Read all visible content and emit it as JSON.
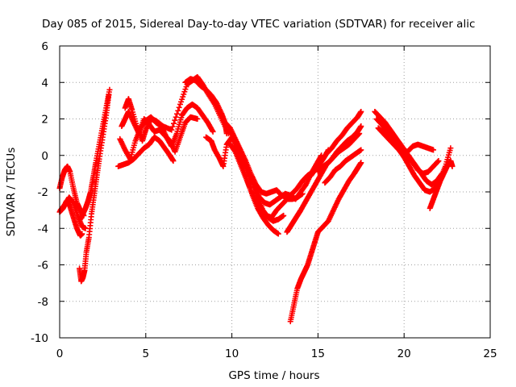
{
  "chart_data": {
    "type": "scatter",
    "title": "Day 085 of 2015, Sidereal Day-to-day VTEC variation (SDTVAR) for receiver alic",
    "xlabel": "GPS time / hours",
    "ylabel": "SDTVAR / TECUs",
    "xlim": [
      0,
      25
    ],
    "ylim": [
      -10,
      6
    ],
    "xticks": [
      0,
      5,
      10,
      15,
      20,
      25
    ],
    "yticks": [
      -10,
      -8,
      -6,
      -4,
      -2,
      0,
      2,
      4,
      6
    ],
    "grid": true,
    "marker": "plus",
    "color": "#ff0000",
    "series": [
      {
        "x": [
          0.0,
          0.15,
          0.3,
          0.45,
          0.6,
          0.8,
          1.0,
          1.2,
          1.4
        ],
        "y": [
          -1.8,
          -1.2,
          -0.8,
          -0.6,
          -0.9,
          -1.8,
          -2.6,
          -3.0,
          -3.3
        ]
      },
      {
        "x": [
          0.0,
          0.2,
          0.4,
          0.6,
          0.8,
          1.0,
          1.2,
          1.3
        ],
        "y": [
          -3.1,
          -2.9,
          -2.5,
          -2.8,
          -3.4,
          -4.0,
          -4.4,
          -4.3
        ]
      },
      {
        "x": [
          0.05,
          0.3,
          0.55,
          0.8,
          1.05,
          1.3,
          1.5
        ],
        "y": [
          -3.0,
          -2.7,
          -2.3,
          -2.6,
          -3.3,
          -3.9,
          -4.0
        ]
      },
      {
        "x": [
          1.2,
          1.35,
          1.5,
          1.65,
          1.8,
          1.95,
          2.1,
          2.3,
          2.5,
          2.7,
          2.9
        ],
        "y": [
          -3.5,
          -3.2,
          -2.9,
          -2.5,
          -2.0,
          -1.2,
          -0.4,
          0.6,
          1.6,
          2.6,
          3.6
        ]
      },
      {
        "x": [
          1.15,
          1.25,
          1.35,
          1.45,
          1.55,
          1.7,
          1.85,
          2.0,
          2.15,
          2.3,
          2.5,
          2.7,
          2.85
        ],
        "y": [
          -6.2,
          -6.9,
          -6.7,
          -6.3,
          -5.3,
          -4.5,
          -3.2,
          -2.2,
          -1.2,
          -0.2,
          1.0,
          2.2,
          3.3
        ]
      },
      {
        "x": [
          3.5,
          3.8,
          4.1,
          4.4,
          4.7,
          5.0,
          5.3,
          5.6,
          5.9,
          6.2,
          6.5,
          6.8,
          7.1,
          7.4,
          7.7,
          8.0,
          8.3,
          8.6,
          8.9
        ],
        "y": [
          0.9,
          0.3,
          -0.2,
          0.8,
          1.5,
          1.9,
          2.1,
          1.8,
          1.6,
          1.0,
          0.5,
          1.2,
          2.2,
          2.6,
          2.8,
          2.6,
          2.2,
          1.8,
          1.3
        ]
      },
      {
        "x": [
          3.6,
          3.8,
          4.0,
          4.3,
          4.6,
          4.9,
          5.2,
          5.5,
          5.8,
          6.1,
          6.4,
          6.7,
          7.0,
          7.3,
          7.6,
          8.0
        ],
        "y": [
          1.6,
          2.0,
          2.4,
          1.8,
          1.2,
          2.0,
          1.7,
          1.3,
          1.4,
          1.1,
          0.8,
          0.2,
          1.0,
          1.8,
          2.1,
          2.0
        ]
      },
      {
        "x": [
          3.4,
          3.7,
          4.0,
          4.3,
          4.6,
          4.9,
          5.2,
          5.5,
          5.8,
          6.1,
          6.4,
          6.6
        ],
        "y": [
          -0.6,
          -0.5,
          -0.4,
          -0.2,
          0.1,
          0.4,
          0.6,
          1.0,
          0.8,
          0.4,
          0.0,
          -0.3
        ]
      },
      {
        "x": [
          3.8,
          4.0,
          4.2,
          4.5,
          4.8,
          5.0,
          5.3,
          5.6,
          6.0,
          6.5,
          7.0,
          7.4,
          7.7,
          8.0,
          8.3,
          8.6,
          9.0,
          9.4,
          9.8
        ],
        "y": [
          2.6,
          3.1,
          2.5,
          1.5,
          0.8,
          1.4,
          2.0,
          1.9,
          1.6,
          1.4,
          2.8,
          3.9,
          4.1,
          4.3,
          3.9,
          3.4,
          2.8,
          2.0,
          1.2
        ]
      },
      {
        "x": [
          7.3,
          7.6,
          7.9,
          8.2,
          8.5,
          8.8,
          9.1,
          9.4,
          9.6,
          9.7
        ],
        "y": [
          4.0,
          4.2,
          4.1,
          3.8,
          3.6,
          3.3,
          2.9,
          2.3,
          1.8,
          1.2
        ]
      },
      {
        "x": [
          8.5,
          8.8,
          9.0,
          9.3,
          9.5,
          9.7,
          10.0,
          10.3,
          10.6,
          10.9,
          11.2,
          11.5,
          11.8,
          12.1,
          12.4,
          12.7
        ],
        "y": [
          1.0,
          0.8,
          0.3,
          -0.2,
          -0.6,
          0.6,
          1.0,
          0.4,
          -0.5,
          -1.4,
          -2.2,
          -2.9,
          -3.4,
          -3.8,
          -4.1,
          -4.3
        ]
      },
      {
        "x": [
          9.6,
          9.9,
          10.2,
          10.5,
          10.8,
          11.1,
          11.4,
          11.7,
          12.0,
          12.3,
          12.6,
          12.9,
          13.2,
          13.5,
          13.8,
          14.1,
          14.4,
          14.7,
          15.0,
          15.3,
          15.6
        ],
        "y": [
          1.8,
          1.5,
          0.9,
          0.3,
          -0.3,
          -1.0,
          -1.6,
          -2.0,
          -2.1,
          -2.0,
          -1.9,
          -2.2,
          -2.3,
          -2.1,
          -1.8,
          -1.4,
          -1.1,
          -0.9,
          -0.6,
          -0.2,
          0.3
        ]
      },
      {
        "x": [
          9.8,
          10.1,
          10.4,
          10.7,
          11.0,
          11.3,
          11.6,
          11.9,
          12.2,
          12.5,
          12.8,
          13.1,
          13.4,
          13.7,
          14.0,
          14.3,
          14.6,
          14.9,
          15.2
        ],
        "y": [
          1.4,
          1.0,
          0.4,
          -0.3,
          -1.0,
          -1.7,
          -2.3,
          -2.6,
          -2.7,
          -2.5,
          -2.3,
          -2.1,
          -2.2,
          -2.4,
          -2.0,
          -1.6,
          -1.0,
          -0.5,
          0.0
        ]
      },
      {
        "x": [
          9.9,
          10.2,
          10.5,
          10.8,
          11.1,
          11.4,
          11.7,
          12.0,
          12.3,
          12.6,
          12.9,
          13.2,
          13.5,
          13.8,
          14.1
        ],
        "y": [
          0.6,
          0.2,
          -0.5,
          -1.2,
          -1.9,
          -2.5,
          -2.9,
          -3.3,
          -3.4,
          -3.0,
          -2.7,
          -2.4,
          -2.4,
          -2.3,
          -2.1
        ]
      },
      {
        "x": [
          10.3,
          10.6,
          10.9,
          11.2,
          11.5,
          11.8,
          12.1,
          12.4,
          12.7,
          13.0
        ],
        "y": [
          0.5,
          0.0,
          -0.7,
          -1.5,
          -2.3,
          -3.0,
          -3.4,
          -3.6,
          -3.5,
          -3.3
        ]
      },
      {
        "x": [
          13.2,
          13.4,
          13.6,
          13.8,
          14.0,
          14.3,
          14.6,
          14.9,
          15.2,
          15.5,
          15.8,
          16.1,
          16.4,
          16.7,
          17.0,
          17.3,
          17.5
        ],
        "y": [
          -4.2,
          -3.9,
          -3.6,
          -3.3,
          -3.0,
          -2.5,
          -2.0,
          -1.5,
          -1.0,
          -0.5,
          -0.2,
          0.2,
          0.5,
          0.8,
          1.0,
          1.3,
          1.6
        ]
      },
      {
        "x": [
          14.6,
          14.9,
          15.2,
          15.5,
          15.8,
          16.1,
          16.4,
          16.7,
          17.0,
          17.3,
          17.5
        ],
        "y": [
          -1.1,
          -0.7,
          -0.3,
          0.1,
          0.4,
          0.8,
          1.1,
          1.5,
          1.8,
          2.1,
          2.4
        ]
      },
      {
        "x": [
          15.0,
          15.3,
          15.6,
          15.9,
          16.2,
          16.5,
          16.8,
          17.1,
          17.4
        ],
        "y": [
          -0.9,
          -0.6,
          -0.4,
          -0.1,
          0.2,
          0.4,
          0.6,
          0.9,
          1.2
        ]
      },
      {
        "x": [
          15.4,
          15.7,
          16.0,
          16.3,
          16.6,
          16.9,
          17.2,
          17.5
        ],
        "y": [
          -1.5,
          -1.2,
          -0.8,
          -0.6,
          -0.3,
          -0.1,
          0.1,
          0.3
        ]
      },
      {
        "x": [
          13.4,
          13.6,
          13.8,
          14.0,
          14.2,
          14.4,
          14.6,
          14.8,
          15.0,
          15.3,
          15.6,
          15.9,
          16.2,
          16.5,
          16.8,
          17.1,
          17.3,
          17.5
        ],
        "y": [
          -9.1,
          -8.2,
          -7.3,
          -6.8,
          -6.4,
          -6.0,
          -5.4,
          -4.8,
          -4.2,
          -3.9,
          -3.6,
          -3.0,
          -2.4,
          -1.9,
          -1.4,
          -1.0,
          -0.7,
          -0.4
        ]
      },
      {
        "x": [
          18.3,
          18.6,
          18.9,
          19.2,
          19.5,
          19.8,
          20.1,
          20.4,
          20.7,
          21.0,
          21.3,
          21.6,
          21.9,
          22.2
        ],
        "y": [
          2.4,
          2.1,
          1.8,
          1.4,
          1.0,
          0.6,
          0.2,
          -0.2,
          -0.6,
          -1.0,
          -1.4,
          -1.6,
          -1.4,
          -1.0
        ]
      },
      {
        "x": [
          18.4,
          18.7,
          19.0,
          19.3,
          19.6,
          19.9,
          20.2,
          20.5,
          20.8,
          21.1,
          21.4,
          21.7
        ],
        "y": [
          2.0,
          1.7,
          1.3,
          0.9,
          0.6,
          0.3,
          0.2,
          0.5,
          0.6,
          0.5,
          0.4,
          0.3
        ]
      },
      {
        "x": [
          18.5,
          18.8,
          19.1,
          19.4,
          19.7,
          20.0,
          20.3,
          20.6,
          20.9,
          21.2,
          21.5,
          21.8,
          22.1,
          22.4,
          22.7
        ],
        "y": [
          1.5,
          1.2,
          0.9,
          0.6,
          0.3,
          -0.1,
          -0.6,
          -1.1,
          -1.5,
          -1.9,
          -2.0,
          -1.8,
          -1.3,
          -0.6,
          0.4
        ]
      },
      {
        "x": [
          19.0,
          19.3,
          19.6,
          19.9,
          20.2,
          20.5,
          20.8,
          21.1,
          21.4,
          21.7,
          22.0
        ],
        "y": [
          1.2,
          1.0,
          0.7,
          0.4,
          0.0,
          -0.4,
          -0.8,
          -1.0,
          -0.9,
          -0.6,
          -0.3
        ]
      },
      {
        "x": [
          21.5,
          21.7,
          21.9,
          22.1,
          22.3,
          22.5,
          22.7,
          22.8
        ],
        "y": [
          -2.9,
          -2.4,
          -1.9,
          -1.4,
          -1.0,
          -0.6,
          -0.3,
          -0.6
        ]
      }
    ]
  }
}
